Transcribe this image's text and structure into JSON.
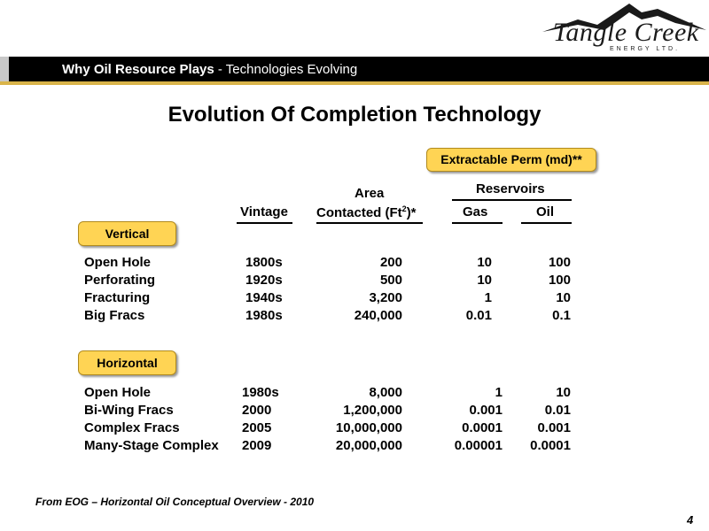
{
  "logo": {
    "name": "Tangle Creek",
    "subtitle": "ENERGY LTD.",
    "mountain_color": "#1a1a1a"
  },
  "header": {
    "title_bold": "Why Oil Resource Plays",
    "title_rest": " - Technologies Evolving"
  },
  "title": "Evolution Of Completion Technology",
  "badges": {
    "perm": "Extractable Perm (md)**",
    "vertical": "Vertical",
    "horizontal": "Horizontal",
    "color": "#ffd454"
  },
  "columns": {
    "vintage": "Vintage",
    "area_line1": "Area",
    "area_line2_prefix": "Contacted (Ft",
    "area_sup": "2",
    "area_line2_suffix": ")*",
    "reservoirs": "Reservoirs",
    "gas": "Gas",
    "oil": "Oil"
  },
  "vertical_rows": [
    {
      "name": "Open Hole",
      "vintage": "1800s",
      "area": "200",
      "gas": "10",
      "oil": "100"
    },
    {
      "name": "Perforating",
      "vintage": "1920s",
      "area": "500",
      "gas": "10",
      "oil": "100"
    },
    {
      "name": "Fracturing",
      "vintage": "1940s",
      "area": "3,200",
      "gas": "1",
      "oil": "10"
    },
    {
      "name": "Big Fracs",
      "vintage": "1980s",
      "area": "240,000",
      "gas": "0.01",
      "oil": "0.1"
    }
  ],
  "horizontal_rows": [
    {
      "name": "Open Hole",
      "vintage": "1980s",
      "area": "8,000",
      "gas": "1",
      "oil": "10"
    },
    {
      "name": "Bi-Wing Fracs",
      "vintage": "2000",
      "area": "1,200,000",
      "gas": "0.001",
      "oil": "0.01"
    },
    {
      "name": "Complex Fracs",
      "vintage": "2005",
      "area": "10,000,000",
      "gas": "0.0001",
      "oil": "0.001"
    },
    {
      "name": "Many-Stage Complex",
      "vintage": "2009",
      "area": "20,000,000",
      "gas": "0.00001",
      "oil": "0.0001"
    }
  ],
  "footer": {
    "source": "From EOG – Horizontal Oil Conceptual Overview - 2010",
    "page": "4"
  }
}
